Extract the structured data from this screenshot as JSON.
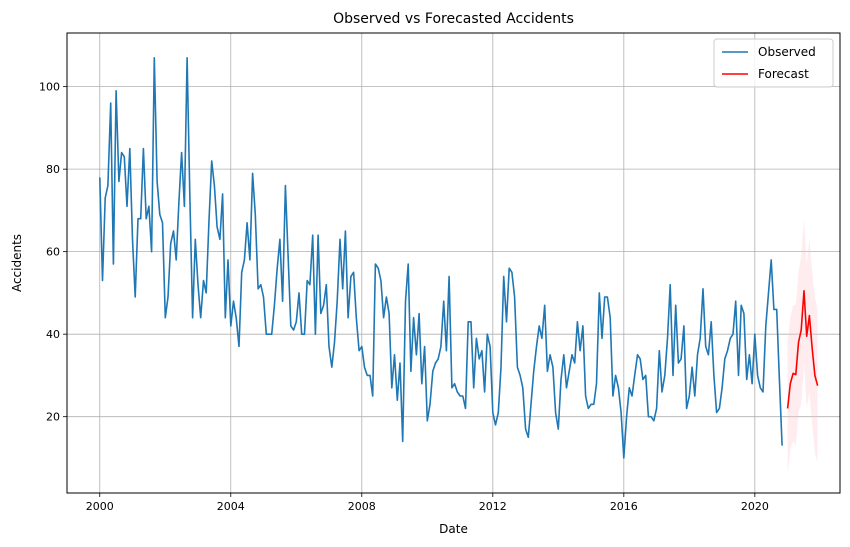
{
  "chart_data": {
    "type": "line",
    "title": "Observed vs Forecasted Accidents",
    "xlabel": "Date",
    "ylabel": "Accidents",
    "xlim": [
      1999.0,
      2022.6
    ],
    "ylim": [
      1.5,
      113
    ],
    "x_ticks": [
      2000,
      2004,
      2008,
      2012,
      2016,
      2020
    ],
    "y_ticks": [
      20,
      40,
      60,
      80,
      100
    ],
    "grid": true,
    "legend_position": "top-right",
    "series": [
      {
        "name": "Observed",
        "color": "#1f77b4",
        "start": "2000-01",
        "values": [
          78,
          53,
          73,
          76,
          96,
          57,
          99,
          77,
          84,
          83,
          71,
          85,
          63,
          49,
          68,
          68,
          85,
          68,
          71,
          60,
          107,
          77,
          69,
          67,
          44,
          49,
          62,
          65,
          58,
          72,
          84,
          71,
          107,
          74,
          44,
          63,
          52,
          44,
          53,
          50,
          67,
          82,
          76,
          66,
          63,
          74,
          44,
          58,
          42,
          48,
          44,
          37,
          55,
          58,
          67,
          58,
          79,
          69,
          51,
          52,
          49,
          40,
          40,
          40,
          47,
          56,
          63,
          48,
          76,
          59,
          42,
          41,
          43,
          50,
          40,
          40,
          53,
          52,
          64,
          40,
          64,
          45,
          47,
          52,
          37,
          32,
          38,
          48,
          63,
          51,
          65,
          44,
          54,
          55,
          44,
          36,
          37,
          32,
          30,
          30,
          25,
          57,
          56,
          53,
          44,
          49,
          45,
          27,
          35,
          24,
          33,
          14,
          48,
          57,
          31,
          44,
          35,
          45,
          28,
          37,
          19,
          23,
          31,
          33,
          34,
          37,
          48,
          36,
          54,
          27,
          28,
          26,
          25,
          25,
          22,
          43,
          43,
          27,
          39,
          34,
          36,
          26,
          40,
          37,
          21,
          18,
          21,
          32,
          54,
          43,
          56,
          55,
          49,
          32,
          30,
          27,
          17,
          15,
          23,
          31,
          37,
          42,
          39,
          47,
          31,
          35,
          32,
          21,
          17,
          29,
          35,
          27,
          31,
          35,
          33,
          43,
          36,
          42,
          25,
          22,
          23,
          23,
          28,
          50,
          39,
          49,
          49,
          44,
          25,
          30,
          27,
          21,
          10,
          20,
          27,
          25,
          30,
          35,
          34,
          29,
          30,
          20,
          20,
          19,
          22,
          36,
          26,
          30,
          39,
          52,
          30,
          47,
          33,
          34,
          42,
          22,
          25,
          32,
          25,
          35,
          39,
          51,
          37,
          35,
          43,
          30,
          21,
          22,
          27,
          34,
          36,
          39,
          40,
          48,
          30,
          47,
          45,
          29,
          35,
          28,
          40,
          30,
          27,
          26,
          42,
          50,
          58,
          46,
          46,
          29,
          13
        ]
      },
      {
        "name": "Forecast",
        "color": "#ff0000",
        "start": "2021-01",
        "values": [
          22,
          28,
          30.5,
          30.2,
          38,
          41,
          50.5,
          39.5,
          44.5,
          36.5,
          30,
          27.5
        ],
        "lower": [
          6,
          12,
          14,
          13,
          21,
          23,
          33,
          22,
          26,
          18,
          11,
          9
        ],
        "upper": [
          38,
          44,
          47,
          47,
          55,
          59,
          68,
          57,
          63,
          55,
          49,
          46
        ]
      }
    ]
  }
}
